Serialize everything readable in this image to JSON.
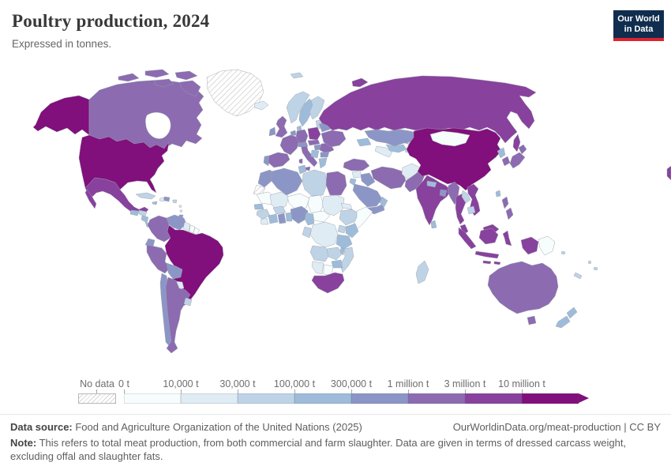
{
  "header": {
    "title": "Poultry production, 2024",
    "subtitle": "Expressed in tonnes."
  },
  "logo": {
    "line1": "Our World",
    "line2": "in Data",
    "bg_color": "#0f2d4e",
    "accent_color": "#dc2330"
  },
  "legend": {
    "no_data_label": "No data",
    "tick_labels": [
      "0 t",
      "10,000 t",
      "30,000 t",
      "100,000 t",
      "300,000 t",
      "1 million t",
      "3 million t",
      "10 million t"
    ]
  },
  "footer": {
    "source_label": "Data source:",
    "source_text": " Food and Agriculture Organization of the United Nations (2025)",
    "link_text": "OurWorldinData.org/meat-production | CC BY",
    "note_label": "Note:",
    "note_text": " This refers to total meat production, from both commercial and farm slaughter. Data are given in terms of dressed carcass weight, excluding offal and slaughter fats."
  },
  "chart_data": {
    "type": "choropleth_map",
    "title": "Poultry production, 2024",
    "unit": "tonnes",
    "year": 2024,
    "bin_colors": [
      "#f7fcfd",
      "#e0ecf4",
      "#bfd3e6",
      "#9ebcda",
      "#8c96c6",
      "#8c6bb1",
      "#88419d",
      "#810f7c"
    ],
    "bin_ranges": [
      "0-10,000 t",
      "10,000-30,000 t",
      "30,000-100,000 t",
      "100,000-300,000 t",
      "300,000 t-1 million t",
      "1-3 million t",
      "3-10 million t",
      "over 10 million t"
    ],
    "no_data_color": "hatched",
    "countries": {
      "United States": 7,
      "China": 7,
      "Brazil": 7,
      "Mexico": 6,
      "Russia": 6,
      "India": 6,
      "Indonesia": 6,
      "Thailand": 6,
      "Vietnam": 6,
      "Malaysia": 6,
      "Poland": 6,
      "South Africa": 6,
      "Canada": 5,
      "United Kingdom": 5,
      "France": 5,
      "Spain": 5,
      "Germany": 5,
      "Italy": 5,
      "Ukraine": 5,
      "Romania": 5,
      "Czechia": 5,
      "Turkey": 5,
      "Egypt": 5,
      "Iran": 5,
      "Pakistan": 5,
      "Japan": 5,
      "South Korea": 5,
      "Philippines": 5,
      "Australia": 5,
      "Argentina": 5,
      "Peru": 5,
      "Colombia": 5,
      "Myanmar": 5,
      "Kazakhstan": 4,
      "Saudi Arabia": 4,
      "Iraq": 4,
      "Yemen": 4,
      "Morocco": 4,
      "Algeria": 4,
      "Nigeria": 4,
      "Ghana": 4,
      "Venezuela": 4,
      "Ecuador": 4,
      "Bolivia": 4,
      "Chile": 4,
      "Dominican Republic": 4,
      "Ireland": 4,
      "Portugal": 4,
      "Netherlands": 4,
      "Bulgaria": 4,
      "Bangladesh": 4,
      "Trinidad and Tobago": 4,
      "Austria": 4,
      "Belarus": 4,
      "Sweden": 3,
      "Denmark": 3,
      "Greece": 3,
      "Serbia": 3,
      "Tunisia": 3,
      "Senegal": 3,
      "Cote d'Ivoire": 3,
      "Benin": 3,
      "Cameroon": 3,
      "Kenya": 3,
      "Tanzania": 3,
      "Zimbabwe": 3,
      "Malawi": 3,
      "Uzbekistan": 3,
      "Georgia": 3,
      "Nepal": 3,
      "Sri Lanka": 3,
      "Taiwan": 3,
      "North Korea": 3,
      "New Zealand": 3,
      "Guatemala": 3,
      "Nicaragua": 3,
      "Jamaica": 3,
      "Oman": 3,
      "Jordan": 3,
      "Panama": 3,
      "Norway": 2,
      "Finland": 2,
      "Lithuania": 2,
      "Libya": 2,
      "Burkina Faso": 2,
      "Guinea": 2,
      "Madagascar": 2,
      "Ethiopia": 2,
      "Mozambique": 2,
      "Angola": 2,
      "Zambia": 2,
      "Uganda": 2,
      "Congo": 2,
      "Cuba": 2,
      "Honduras": 2,
      "Uruguay": 2,
      "Laos": 2,
      "Cambodia": 2,
      "Kyrgyzstan": 2,
      "Tajikistan": 2,
      "New Caledonia": 2,
      "Puerto Rico": 2,
      "Svalbard": 2,
      "Fiji": 2,
      "Solomon Islands": 2,
      "Iceland": 1,
      "Afghanistan": 1,
      "Turkmenistan": 1,
      "Syria": 1,
      "Sudan": 1,
      "Mali": 1,
      "Eritrea": 1,
      "Sierra Leone": 1,
      "Democratic Republic of Congo": 1,
      "Namibia": 1,
      "Paraguay": 1,
      "Guyana": 1,
      "Haiti": 1,
      "Lesser Antilles": 1,
      "Mongolia": 0,
      "Papua New Guinea": 0,
      "Mauritania": 0,
      "Niger": 0,
      "Chad": 0,
      "Central African Republic": 0,
      "Somalia": 0,
      "Botswana": 0,
      "Suriname": 0,
      "French Guiana": 0,
      "Greenland": -1,
      "Western Sahara": -1
    }
  }
}
